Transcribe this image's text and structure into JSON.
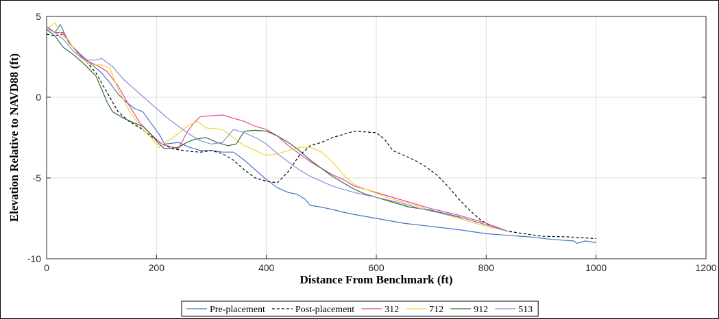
{
  "chart_data": {
    "type": "line",
    "xlabel": "Distance From Benchmark (ft)",
    "ylabel": "Elevation Relative to NAVD88 (ft)",
    "xlim": [
      0,
      1200
    ],
    "ylim": [
      -10,
      5
    ],
    "xticks": [
      0,
      200,
      400,
      600,
      800,
      1000,
      1200
    ],
    "yticks": [
      -10,
      -5,
      0,
      5
    ],
    "grid": true,
    "legend_position": "bottom",
    "series": [
      {
        "name": "Pre-placement",
        "color": "#4472c4",
        "dash": "solid",
        "points": [
          [
            0,
            4.4
          ],
          [
            15,
            4.0
          ],
          [
            25,
            4.5
          ],
          [
            40,
            3.4
          ],
          [
            60,
            2.7
          ],
          [
            80,
            2.1
          ],
          [
            100,
            1.5
          ],
          [
            115,
            0.9
          ],
          [
            130,
            0.2
          ],
          [
            145,
            -0.3
          ],
          [
            160,
            -0.7
          ],
          [
            175,
            -0.9
          ],
          [
            190,
            -1.6
          ],
          [
            205,
            -2.3
          ],
          [
            215,
            -2.9
          ],
          [
            240,
            -2.8
          ],
          [
            260,
            -3.1
          ],
          [
            280,
            -3.3
          ],
          [
            300,
            -3.3
          ],
          [
            320,
            -3.4
          ],
          [
            340,
            -3.4
          ],
          [
            360,
            -3.9
          ],
          [
            380,
            -4.5
          ],
          [
            400,
            -5.1
          ],
          [
            420,
            -5.6
          ],
          [
            440,
            -5.9
          ],
          [
            455,
            -6.0
          ],
          [
            470,
            -6.3
          ],
          [
            480,
            -6.7
          ],
          [
            500,
            -6.8
          ],
          [
            520,
            -6.95
          ],
          [
            550,
            -7.2
          ],
          [
            600,
            -7.5
          ],
          [
            650,
            -7.8
          ],
          [
            700,
            -8.0
          ],
          [
            750,
            -8.2
          ],
          [
            800,
            -8.45
          ],
          [
            840,
            -8.55
          ],
          [
            880,
            -8.65
          ],
          [
            920,
            -8.8
          ],
          [
            960,
            -8.9
          ],
          [
            965,
            -9.05
          ],
          [
            980,
            -8.9
          ],
          [
            1000,
            -9.0
          ]
        ]
      },
      {
        "name": "Post-placement",
        "color": "#000000",
        "dash": "dashed",
        "points": [
          [
            0,
            3.9
          ],
          [
            15,
            3.8
          ],
          [
            30,
            3.9
          ],
          [
            50,
            3.0
          ],
          [
            70,
            2.3
          ],
          [
            90,
            1.5
          ],
          [
            110,
            0.3
          ],
          [
            130,
            -0.9
          ],
          [
            150,
            -1.5
          ],
          [
            170,
            -1.9
          ],
          [
            190,
            -2.4
          ],
          [
            210,
            -2.9
          ],
          [
            230,
            -3.2
          ],
          [
            260,
            -3.35
          ],
          [
            280,
            -3.4
          ],
          [
            300,
            -3.3
          ],
          [
            320,
            -3.5
          ],
          [
            340,
            -3.9
          ],
          [
            360,
            -4.5
          ],
          [
            380,
            -5.0
          ],
          [
            400,
            -5.2
          ],
          [
            420,
            -5.3
          ],
          [
            440,
            -4.6
          ],
          [
            460,
            -3.6
          ],
          [
            480,
            -3.0
          ],
          [
            500,
            -2.8
          ],
          [
            520,
            -2.5
          ],
          [
            540,
            -2.3
          ],
          [
            560,
            -2.1
          ],
          [
            580,
            -2.15
          ],
          [
            600,
            -2.2
          ],
          [
            615,
            -2.6
          ],
          [
            630,
            -3.3
          ],
          [
            650,
            -3.6
          ],
          [
            670,
            -3.9
          ],
          [
            690,
            -4.3
          ],
          [
            710,
            -4.8
          ],
          [
            730,
            -5.5
          ],
          [
            750,
            -6.3
          ],
          [
            770,
            -7.0
          ],
          [
            790,
            -7.6
          ],
          [
            810,
            -8.0
          ],
          [
            840,
            -8.3
          ],
          [
            870,
            -8.45
          ],
          [
            900,
            -8.6
          ],
          [
            950,
            -8.65
          ],
          [
            1000,
            -8.75
          ]
        ]
      },
      {
        "name": "312",
        "color": "#e0479e",
        "dash": "solid",
        "points": [
          [
            0,
            4.3
          ],
          [
            15,
            4.0
          ],
          [
            30,
            4.0
          ],
          [
            50,
            3.0
          ],
          [
            70,
            2.3
          ],
          [
            90,
            2.0
          ],
          [
            110,
            1.6
          ],
          [
            130,
            0.7
          ],
          [
            150,
            -0.5
          ],
          [
            170,
            -1.6
          ],
          [
            190,
            -2.3
          ],
          [
            210,
            -2.9
          ],
          [
            230,
            -3.1
          ],
          [
            240,
            -3.2
          ],
          [
            255,
            -2.2
          ],
          [
            270,
            -1.5
          ],
          [
            280,
            -1.2
          ],
          [
            300,
            -1.15
          ],
          [
            320,
            -1.1
          ],
          [
            340,
            -1.3
          ],
          [
            360,
            -1.5
          ],
          [
            380,
            -1.8
          ],
          [
            400,
            -2.0
          ],
          [
            420,
            -2.4
          ],
          [
            440,
            -3.0
          ],
          [
            460,
            -3.5
          ],
          [
            480,
            -4.0
          ],
          [
            500,
            -4.4
          ],
          [
            520,
            -4.8
          ],
          [
            540,
            -5.1
          ],
          [
            560,
            -5.5
          ],
          [
            600,
            -5.9
          ],
          [
            650,
            -6.4
          ],
          [
            700,
            -6.9
          ],
          [
            750,
            -7.3
          ],
          [
            800,
            -7.8
          ],
          [
            840,
            -8.3
          ]
        ]
      },
      {
        "name": "712",
        "color": "#f2d22e",
        "dash": "solid",
        "points": [
          [
            0,
            4.2
          ],
          [
            15,
            4.6
          ],
          [
            25,
            4.0
          ],
          [
            40,
            3.5
          ],
          [
            60,
            2.5
          ],
          [
            80,
            2.0
          ],
          [
            100,
            2.0
          ],
          [
            115,
            1.8
          ],
          [
            130,
            0.5
          ],
          [
            150,
            -0.8
          ],
          [
            170,
            -1.8
          ],
          [
            190,
            -2.5
          ],
          [
            205,
            -3.1
          ],
          [
            215,
            -2.8
          ],
          [
            230,
            -2.5
          ],
          [
            245,
            -2.1
          ],
          [
            260,
            -1.7
          ],
          [
            275,
            -1.5
          ],
          [
            290,
            -1.9
          ],
          [
            320,
            -2.0
          ],
          [
            340,
            -2.5
          ],
          [
            360,
            -3.0
          ],
          [
            380,
            -3.3
          ],
          [
            400,
            -3.6
          ],
          [
            420,
            -3.5
          ],
          [
            440,
            -3.3
          ],
          [
            460,
            -3.1
          ],
          [
            480,
            -3.1
          ],
          [
            500,
            -3.4
          ],
          [
            520,
            -4.0
          ],
          [
            540,
            -4.8
          ],
          [
            560,
            -5.4
          ],
          [
            580,
            -5.7
          ],
          [
            620,
            -6.2
          ],
          [
            660,
            -6.6
          ],
          [
            700,
            -7.0
          ],
          [
            750,
            -7.5
          ],
          [
            800,
            -8.0
          ],
          [
            840,
            -8.3
          ]
        ]
      },
      {
        "name": "912",
        "color": "#2f6b2f",
        "dash": "solid",
        "points": [
          [
            0,
            4.2
          ],
          [
            15,
            3.8
          ],
          [
            30,
            3.1
          ],
          [
            50,
            2.6
          ],
          [
            70,
            2.0
          ],
          [
            90,
            1.3
          ],
          [
            100,
            0.5
          ],
          [
            110,
            -0.3
          ],
          [
            120,
            -0.9
          ],
          [
            140,
            -1.3
          ],
          [
            160,
            -1.6
          ],
          [
            175,
            -1.8
          ],
          [
            190,
            -2.3
          ],
          [
            205,
            -2.9
          ],
          [
            215,
            -3.2
          ],
          [
            240,
            -3.1
          ],
          [
            255,
            -2.8
          ],
          [
            270,
            -2.6
          ],
          [
            290,
            -2.5
          ],
          [
            310,
            -2.8
          ],
          [
            330,
            -3.0
          ],
          [
            345,
            -2.9
          ],
          [
            360,
            -2.1
          ],
          [
            380,
            -2.05
          ],
          [
            400,
            -2.1
          ],
          [
            420,
            -2.4
          ],
          [
            440,
            -2.8
          ],
          [
            460,
            -3.3
          ],
          [
            480,
            -3.9
          ],
          [
            500,
            -4.4
          ],
          [
            520,
            -4.9
          ],
          [
            540,
            -5.3
          ],
          [
            560,
            -5.7
          ],
          [
            580,
            -6.0
          ],
          [
            620,
            -6.4
          ],
          [
            660,
            -6.8
          ],
          [
            700,
            -7.0
          ],
          [
            750,
            -7.4
          ],
          [
            800,
            -7.9
          ],
          [
            840,
            -8.3
          ]
        ]
      },
      {
        "name": "513",
        "color": "#8b8bd9",
        "dash": "solid",
        "points": [
          [
            0,
            4.4
          ],
          [
            15,
            4.0
          ],
          [
            30,
            3.6
          ],
          [
            50,
            2.8
          ],
          [
            70,
            2.3
          ],
          [
            90,
            2.3
          ],
          [
            100,
            2.4
          ],
          [
            120,
            1.9
          ],
          [
            140,
            1.1
          ],
          [
            160,
            0.5
          ],
          [
            180,
            -0.1
          ],
          [
            200,
            -0.7
          ],
          [
            220,
            -1.3
          ],
          [
            240,
            -1.8
          ],
          [
            260,
            -2.3
          ],
          [
            280,
            -2.7
          ],
          [
            300,
            -2.9
          ],
          [
            320,
            -2.8
          ],
          [
            340,
            -2.0
          ],
          [
            360,
            -2.2
          ],
          [
            380,
            -2.5
          ],
          [
            400,
            -2.9
          ],
          [
            420,
            -3.5
          ],
          [
            440,
            -4.0
          ],
          [
            460,
            -4.5
          ],
          [
            480,
            -4.9
          ],
          [
            500,
            -5.2
          ],
          [
            520,
            -5.5
          ],
          [
            560,
            -5.9
          ],
          [
            600,
            -6.2
          ],
          [
            640,
            -6.5
          ],
          [
            680,
            -6.9
          ],
          [
            720,
            -7.2
          ],
          [
            760,
            -7.5
          ],
          [
            800,
            -7.9
          ],
          [
            840,
            -8.3
          ]
        ]
      }
    ]
  }
}
